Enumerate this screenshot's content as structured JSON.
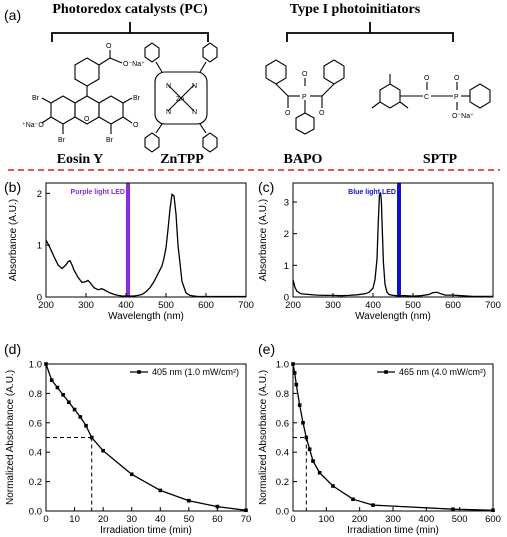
{
  "top": {
    "panel_label": "(a)",
    "group_pc": "Photoredox catalysts (PC)",
    "group_pi": "Type I photoinitiators",
    "molecules": [
      "Eosin Y",
      "ZnTPP",
      "BAPO",
      "SPTP"
    ],
    "atoms": {
      "br": "Br",
      "na_o": "O⁻Na⁺",
      "na_o2": "⁺Na⁻O",
      "o": "O",
      "zn": "Zn",
      "n": "N",
      "p": "P",
      "c": "C",
      "ona": "O⁻Na⁺"
    }
  },
  "colors": {
    "purple_led": "#8a2be2",
    "blue_led": "#1010d0",
    "divider": "#e02020"
  },
  "chart_data": [
    {
      "panel": "(b)",
      "type": "line",
      "xlabel": "Wavelength (nm)",
      "ylabel": "Absorbance (A.U.)",
      "xlim": [
        200,
        700
      ],
      "ylim": [
        0,
        2.2
      ],
      "xticks": [
        200,
        300,
        400,
        500,
        600,
        700
      ],
      "yticks": [
        0,
        1,
        2
      ],
      "annotation": "Purple light LED",
      "marker_x": 405,
      "x": [
        200,
        210,
        220,
        230,
        240,
        250,
        255,
        260,
        265,
        270,
        280,
        290,
        300,
        305,
        310,
        320,
        330,
        340,
        350,
        360,
        370,
        380,
        390,
        400,
        410,
        420,
        430,
        440,
        450,
        460,
        470,
        480,
        490,
        495,
        500,
        505,
        510,
        515,
        520,
        525,
        530,
        540,
        550,
        560,
        570,
        580,
        600,
        650,
        700
      ],
      "y": [
        1.1,
        0.95,
        0.78,
        0.62,
        0.55,
        0.62,
        0.68,
        0.7,
        0.62,
        0.52,
        0.38,
        0.28,
        0.3,
        0.32,
        0.28,
        0.18,
        0.14,
        0.16,
        0.12,
        0.08,
        0.05,
        0.03,
        0.02,
        0.02,
        0.02,
        0.02,
        0.03,
        0.05,
        0.1,
        0.18,
        0.3,
        0.45,
        0.6,
        0.75,
        0.95,
        1.3,
        1.7,
        1.98,
        1.95,
        1.6,
        1.0,
        0.3,
        0.08,
        0.03,
        0.02,
        0.01,
        0.01,
        0.01,
        0.01
      ]
    },
    {
      "panel": "(c)",
      "type": "line",
      "xlabel": "Wavelength (nm)",
      "ylabel": "Absorbance (A.U.)",
      "xlim": [
        200,
        700
      ],
      "ylim": [
        0,
        3.6
      ],
      "xticks": [
        200,
        300,
        400,
        500,
        600,
        700
      ],
      "yticks": [
        0,
        1,
        2,
        3
      ],
      "annotation": "Blue light LED",
      "marker_x": 465,
      "x": [
        200,
        205,
        210,
        220,
        240,
        260,
        280,
        300,
        320,
        340,
        360,
        380,
        390,
        400,
        405,
        410,
        413,
        416,
        419,
        421,
        423,
        426,
        430,
        435,
        440,
        450,
        460,
        480,
        500,
        520,
        540,
        550,
        560,
        570,
        580,
        600,
        620,
        650,
        700
      ],
      "y": [
        0.55,
        0.3,
        0.18,
        0.1,
        0.08,
        0.06,
        0.05,
        0.05,
        0.04,
        0.05,
        0.07,
        0.1,
        0.15,
        0.28,
        0.55,
        1.2,
        2.3,
        3.2,
        3.3,
        3.0,
        2.2,
        1.1,
        0.4,
        0.15,
        0.08,
        0.05,
        0.04,
        0.04,
        0.03,
        0.04,
        0.08,
        0.14,
        0.15,
        0.1,
        0.06,
        0.06,
        0.04,
        0.02,
        0.02
      ]
    },
    {
      "panel": "(d)",
      "type": "line",
      "xlabel": "Irradiation time (min)",
      "ylabel": "Normalized Absorbance (A.U.)",
      "xlim": [
        0,
        70
      ],
      "ylim": [
        0,
        1.0
      ],
      "xticks": [
        0,
        10,
        20,
        30,
        40,
        50,
        60,
        70
      ],
      "yticks": [
        0.0,
        0.2,
        0.4,
        0.6,
        0.8,
        1.0
      ],
      "legend": "405 nm (1.0 mW/cm²)",
      "legend_position": "top-right",
      "guide": {
        "x": 16,
        "y": 0.5
      },
      "x": [
        0,
        2,
        4,
        6,
        8,
        10,
        12,
        14,
        16,
        20,
        30,
        40,
        50,
        60,
        70
      ],
      "y": [
        1.0,
        0.89,
        0.84,
        0.79,
        0.74,
        0.69,
        0.64,
        0.58,
        0.5,
        0.41,
        0.25,
        0.14,
        0.07,
        0.03,
        0.005
      ]
    },
    {
      "panel": "(e)",
      "type": "line",
      "xlabel": "Irradiation time (min)",
      "ylabel": "Normalized Absorbance (A.U.)",
      "xlim": [
        0,
        600
      ],
      "ylim": [
        0,
        1.0
      ],
      "xticks": [
        0,
        100,
        200,
        300,
        400,
        500,
        600
      ],
      "yticks": [
        0.0,
        0.2,
        0.4,
        0.6,
        0.8,
        1.0
      ],
      "legend": "465 nm (4.0 mW/cm²)",
      "legend_position": "top-right",
      "guide": {
        "x": 40,
        "y": 0.5
      },
      "x": [
        0,
        5,
        10,
        20,
        30,
        40,
        50,
        60,
        80,
        120,
        180,
        240,
        480,
        600
      ],
      "y": [
        1.0,
        0.94,
        0.86,
        0.72,
        0.6,
        0.5,
        0.42,
        0.34,
        0.26,
        0.17,
        0.08,
        0.04,
        0.012,
        0.005
      ]
    }
  ]
}
